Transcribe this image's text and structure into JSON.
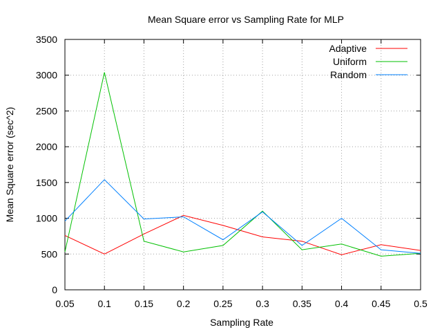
{
  "chart_data": {
    "type": "line",
    "title": "Mean Square error vs Sampling Rate for MLP",
    "xlabel": "Sampling Rate",
    "ylabel": "Mean Square error (sec^2)",
    "xlim": [
      0.05,
      0.5
    ],
    "ylim": [
      0,
      3500
    ],
    "xticks": [
      "0.05",
      "0.1",
      "0.15",
      "0.2",
      "0.25",
      "0.3",
      "0.35",
      "0.4",
      "0.45",
      "0.5"
    ],
    "yticks": [
      "0",
      "500",
      "1000",
      "1500",
      "2000",
      "2500",
      "3000",
      "3500"
    ],
    "grid": true,
    "legend_position": "top-right",
    "x": [
      0.05,
      0.1,
      0.15,
      0.2,
      0.25,
      0.3,
      0.35,
      0.4,
      0.45,
      0.5
    ],
    "series": [
      {
        "name": "Adaptive",
        "color": "#ff0000",
        "values": [
          760,
          500,
          780,
          1040,
          900,
          740,
          680,
          490,
          630,
          550
        ]
      },
      {
        "name": "Uniform",
        "color": "#00c000",
        "values": [
          530,
          3040,
          680,
          530,
          620,
          1100,
          560,
          640,
          470,
          510
        ]
      },
      {
        "name": "Random",
        "color": "#0080ff",
        "values": [
          960,
          1540,
          990,
          1020,
          700,
          1090,
          620,
          1000,
          560,
          510
        ]
      }
    ]
  }
}
